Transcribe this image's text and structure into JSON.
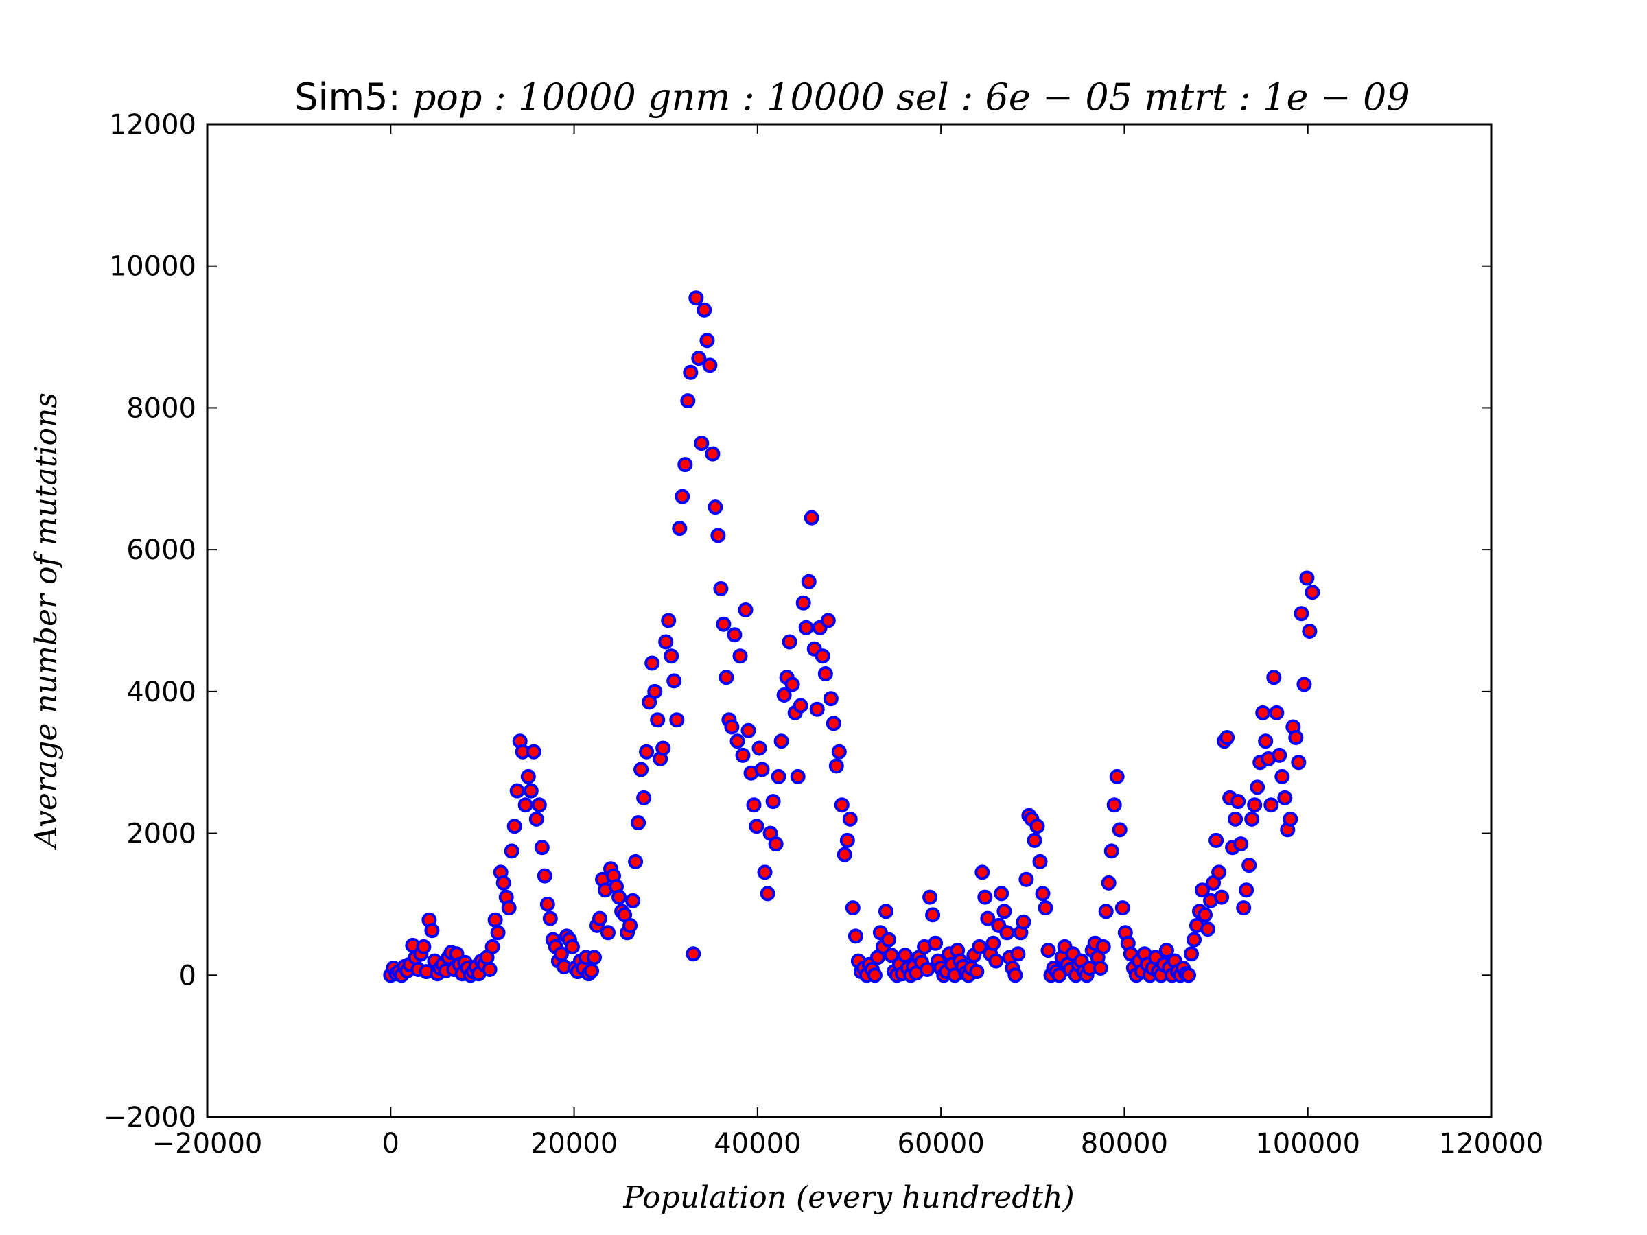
{
  "chart_data": {
    "type": "scatter",
    "title": {
      "prefix": "Sim5: ",
      "math": "pop : 10000  gnm : 10000  sel : 6e − 05  mtrt : 1e − 09"
    },
    "xlabel": "Population (every hundredth)",
    "ylabel": "Average number of mutations",
    "xlim": [
      -20000,
      120000
    ],
    "ylim": [
      -2000,
      12000
    ],
    "x_ticks": [
      -20000,
      0,
      20000,
      40000,
      60000,
      80000,
      100000,
      120000
    ],
    "x_tick_labels": [
      "−20000",
      "0",
      "20000",
      "40000",
      "60000",
      "80000",
      "100000",
      "120000"
    ],
    "y_ticks": [
      -2000,
      0,
      2000,
      4000,
      6000,
      8000,
      10000,
      12000
    ],
    "y_tick_labels": [
      "−2000",
      "0",
      "2000",
      "4000",
      "6000",
      "8000",
      "10000",
      "12000"
    ],
    "grid": false,
    "marker": {
      "fill": "#ff0000",
      "edge": "#0000ff",
      "shape": "circle"
    },
    "points": [
      [
        0,
        0
      ],
      [
        300,
        100
      ],
      [
        600,
        20
      ],
      [
        900,
        50
      ],
      [
        1200,
        0
      ],
      [
        1500,
        120
      ],
      [
        1800,
        60
      ],
      [
        2100,
        150
      ],
      [
        2400,
        420
      ],
      [
        2700,
        250
      ],
      [
        3000,
        80
      ],
      [
        3300,
        300
      ],
      [
        3600,
        400
      ],
      [
        3900,
        50
      ],
      [
        4200,
        780
      ],
      [
        4500,
        630
      ],
      [
        4800,
        200
      ],
      [
        5100,
        20
      ],
      [
        5400,
        100
      ],
      [
        5700,
        150
      ],
      [
        6000,
        60
      ],
      [
        6300,
        250
      ],
      [
        6600,
        320
      ],
      [
        6900,
        80
      ],
      [
        7200,
        300
      ],
      [
        7500,
        150
      ],
      [
        7800,
        20
      ],
      [
        8100,
        180
      ],
      [
        8400,
        100
      ],
      [
        8700,
        0
      ],
      [
        9000,
        50
      ],
      [
        9300,
        120
      ],
      [
        9600,
        20
      ],
      [
        9900,
        200
      ],
      [
        10200,
        150
      ],
      [
        10500,
        250
      ],
      [
        10800,
        80
      ],
      [
        11100,
        400
      ],
      [
        11400,
        780
      ],
      [
        11700,
        600
      ],
      [
        12000,
        1450
      ],
      [
        12300,
        1300
      ],
      [
        12600,
        1100
      ],
      [
        12900,
        950
      ],
      [
        13200,
        1750
      ],
      [
        13500,
        2100
      ],
      [
        13800,
        2600
      ],
      [
        14100,
        3300
      ],
      [
        14400,
        3150
      ],
      [
        14700,
        2400
      ],
      [
        15000,
        2800
      ],
      [
        15300,
        2600
      ],
      [
        15600,
        3150
      ],
      [
        15900,
        2200
      ],
      [
        16200,
        2400
      ],
      [
        16500,
        1800
      ],
      [
        16800,
        1400
      ],
      [
        17100,
        1000
      ],
      [
        17400,
        800
      ],
      [
        17700,
        500
      ],
      [
        18000,
        400
      ],
      [
        18300,
        200
      ],
      [
        18600,
        300
      ],
      [
        18900,
        120
      ],
      [
        19200,
        550
      ],
      [
        19500,
        500
      ],
      [
        19800,
        400
      ],
      [
        20100,
        100
      ],
      [
        20400,
        50
      ],
      [
        20700,
        200
      ],
      [
        21000,
        100
      ],
      [
        21300,
        250
      ],
      [
        21600,
        20
      ],
      [
        21900,
        60
      ],
      [
        22200,
        250
      ],
      [
        22500,
        700
      ],
      [
        22800,
        800
      ],
      [
        23100,
        1350
      ],
      [
        23400,
        1200
      ],
      [
        23700,
        600
      ],
      [
        24000,
        1500
      ],
      [
        24300,
        1400
      ],
      [
        24600,
        1250
      ],
      [
        24900,
        1100
      ],
      [
        25200,
        900
      ],
      [
        25500,
        850
      ],
      [
        25800,
        600
      ],
      [
        26100,
        700
      ],
      [
        26400,
        1050
      ],
      [
        26700,
        1600
      ],
      [
        27000,
        2150
      ],
      [
        27300,
        2900
      ],
      [
        27600,
        2500
      ],
      [
        27900,
        3150
      ],
      [
        28200,
        3850
      ],
      [
        28500,
        4400
      ],
      [
        28800,
        4000
      ],
      [
        29100,
        3600
      ],
      [
        29400,
        3050
      ],
      [
        29700,
        3200
      ],
      [
        30000,
        4700
      ],
      [
        30300,
        5000
      ],
      [
        30600,
        4500
      ],
      [
        30900,
        4150
      ],
      [
        31200,
        3600
      ],
      [
        31500,
        6300
      ],
      [
        31800,
        6750
      ],
      [
        32100,
        7200
      ],
      [
        32400,
        8100
      ],
      [
        32700,
        8500
      ],
      [
        33000,
        300
      ],
      [
        33300,
        9550
      ],
      [
        33600,
        8700
      ],
      [
        33900,
        7500
      ],
      [
        34200,
        9380
      ],
      [
        34500,
        8950
      ],
      [
        34800,
        8600
      ],
      [
        35100,
        7350
      ],
      [
        35400,
        6600
      ],
      [
        35700,
        6200
      ],
      [
        36000,
        5450
      ],
      [
        36300,
        4950
      ],
      [
        36600,
        4200
      ],
      [
        36900,
        3600
      ],
      [
        37200,
        3500
      ],
      [
        37500,
        4800
      ],
      [
        37800,
        3300
      ],
      [
        38100,
        4500
      ],
      [
        38400,
        3100
      ],
      [
        38700,
        5150
      ],
      [
        39000,
        3450
      ],
      [
        39300,
        2850
      ],
      [
        39600,
        2400
      ],
      [
        39900,
        2100
      ],
      [
        40200,
        3200
      ],
      [
        40500,
        2900
      ],
      [
        40800,
        1450
      ],
      [
        41100,
        1150
      ],
      [
        41400,
        2000
      ],
      [
        41700,
        2450
      ],
      [
        42000,
        1850
      ],
      [
        42300,
        2800
      ],
      [
        42600,
        3300
      ],
      [
        42900,
        3950
      ],
      [
        43200,
        4200
      ],
      [
        43500,
        4700
      ],
      [
        43800,
        4100
      ],
      [
        44100,
        3700
      ],
      [
        44400,
        2800
      ],
      [
        44700,
        3800
      ],
      [
        45000,
        5250
      ],
      [
        45300,
        4900
      ],
      [
        45600,
        5550
      ],
      [
        45900,
        6450
      ],
      [
        46200,
        4600
      ],
      [
        46500,
        3750
      ],
      [
        46800,
        4900
      ],
      [
        47100,
        4500
      ],
      [
        47400,
        4250
      ],
      [
        47700,
        5000
      ],
      [
        48000,
        3900
      ],
      [
        48300,
        3550
      ],
      [
        48600,
        2950
      ],
      [
        48900,
        3150
      ],
      [
        49200,
        2400
      ],
      [
        49500,
        1700
      ],
      [
        49800,
        1900
      ],
      [
        50100,
        2200
      ],
      [
        50400,
        950
      ],
      [
        50700,
        550
      ],
      [
        51000,
        200
      ],
      [
        51300,
        50
      ],
      [
        51600,
        100
      ],
      [
        51900,
        0
      ],
      [
        52200,
        150
      ],
      [
        52500,
        80
      ],
      [
        52800,
        0
      ],
      [
        53100,
        250
      ],
      [
        53400,
        600
      ],
      [
        53700,
        400
      ],
      [
        54000,
        900
      ],
      [
        54300,
        500
      ],
      [
        54600,
        280
      ],
      [
        54900,
        50
      ],
      [
        55200,
        0
      ],
      [
        55500,
        150
      ],
      [
        55800,
        20
      ],
      [
        56100,
        280
      ],
      [
        56400,
        100
      ],
      [
        56700,
        0
      ],
      [
        57000,
        120
      ],
      [
        57300,
        30
      ],
      [
        57600,
        250
      ],
      [
        57900,
        180
      ],
      [
        58200,
        400
      ],
      [
        58500,
        80
      ],
      [
        58800,
        1100
      ],
      [
        59100,
        850
      ],
      [
        59400,
        450
      ],
      [
        59700,
        200
      ],
      [
        60000,
        100
      ],
      [
        60300,
        0
      ],
      [
        60600,
        50
      ],
      [
        60900,
        300
      ],
      [
        61200,
        150
      ],
      [
        61500,
        0
      ],
      [
        61800,
        350
      ],
      [
        62100,
        200
      ],
      [
        62400,
        120
      ],
      [
        62700,
        30
      ],
      [
        63000,
        0
      ],
      [
        63300,
        100
      ],
      [
        63600,
        280
      ],
      [
        63900,
        50
      ],
      [
        64200,
        400
      ],
      [
        64500,
        1450
      ],
      [
        64800,
        1100
      ],
      [
        65100,
        800
      ],
      [
        65400,
        300
      ],
      [
        65700,
        450
      ],
      [
        66000,
        200
      ],
      [
        66300,
        700
      ],
      [
        66600,
        1150
      ],
      [
        66900,
        900
      ],
      [
        67200,
        600
      ],
      [
        67500,
        250
      ],
      [
        67800,
        100
      ],
      [
        68100,
        0
      ],
      [
        68400,
        300
      ],
      [
        68700,
        600
      ],
      [
        69000,
        750
      ],
      [
        69300,
        1350
      ],
      [
        69600,
        2250
      ],
      [
        69900,
        2200
      ],
      [
        70200,
        1900
      ],
      [
        70500,
        2100
      ],
      [
        70800,
        1600
      ],
      [
        71100,
        1150
      ],
      [
        71400,
        950
      ],
      [
        71700,
        350
      ],
      [
        72000,
        0
      ],
      [
        72300,
        100
      ],
      [
        72600,
        50
      ],
      [
        72900,
        0
      ],
      [
        73200,
        250
      ],
      [
        73500,
        400
      ],
      [
        73800,
        150
      ],
      [
        74100,
        80
      ],
      [
        74400,
        300
      ],
      [
        74700,
        0
      ],
      [
        75000,
        150
      ],
      [
        75300,
        200
      ],
      [
        75600,
        50
      ],
      [
        75900,
        0
      ],
      [
        76200,
        100
      ],
      [
        76500,
        350
      ],
      [
        76800,
        450
      ],
      [
        77100,
        250
      ],
      [
        77400,
        100
      ],
      [
        77700,
        400
      ],
      [
        78000,
        900
      ],
      [
        78300,
        1300
      ],
      [
        78600,
        1750
      ],
      [
        78900,
        2400
      ],
      [
        79200,
        2800
      ],
      [
        79500,
        2050
      ],
      [
        79800,
        950
      ],
      [
        80100,
        600
      ],
      [
        80400,
        450
      ],
      [
        80700,
        300
      ],
      [
        81000,
        100
      ],
      [
        81300,
        0
      ],
      [
        81600,
        200
      ],
      [
        81900,
        50
      ],
      [
        82200,
        300
      ],
      [
        82500,
        150
      ],
      [
        82800,
        0
      ],
      [
        83100,
        100
      ],
      [
        83400,
        250
      ],
      [
        83700,
        50
      ],
      [
        84000,
        0
      ],
      [
        84300,
        150
      ],
      [
        84600,
        350
      ],
      [
        84900,
        100
      ],
      [
        85200,
        0
      ],
      [
        85500,
        200
      ],
      [
        85800,
        50
      ],
      [
        86100,
        0
      ],
      [
        86400,
        100
      ],
      [
        86700,
        20
      ],
      [
        87000,
        0
      ],
      [
        87300,
        300
      ],
      [
        87600,
        500
      ],
      [
        87900,
        700
      ],
      [
        88200,
        900
      ],
      [
        88500,
        1200
      ],
      [
        88800,
        850
      ],
      [
        89100,
        650
      ],
      [
        89400,
        1050
      ],
      [
        89700,
        1300
      ],
      [
        90000,
        1900
      ],
      [
        90300,
        1450
      ],
      [
        90600,
        1100
      ],
      [
        90900,
        3300
      ],
      [
        91200,
        3350
      ],
      [
        91500,
        2500
      ],
      [
        91800,
        1800
      ],
      [
        92100,
        2200
      ],
      [
        92400,
        2450
      ],
      [
        92700,
        1850
      ],
      [
        93000,
        950
      ],
      [
        93300,
        1200
      ],
      [
        93600,
        1550
      ],
      [
        93900,
        2200
      ],
      [
        94200,
        2400
      ],
      [
        94500,
        2650
      ],
      [
        94800,
        3000
      ],
      [
        95100,
        3700
      ],
      [
        95400,
        3300
      ],
      [
        95700,
        3050
      ],
      [
        96000,
        2400
      ],
      [
        96300,
        4200
      ],
      [
        96600,
        3700
      ],
      [
        96900,
        3100
      ],
      [
        97200,
        2800
      ],
      [
        97500,
        2500
      ],
      [
        97800,
        2050
      ],
      [
        98100,
        2200
      ],
      [
        98400,
        3500
      ],
      [
        98700,
        3350
      ],
      [
        99000,
        3000
      ],
      [
        99300,
        5100
      ],
      [
        99600,
        4100
      ],
      [
        99900,
        5600
      ],
      [
        100200,
        4850
      ],
      [
        100500,
        5400
      ]
    ]
  }
}
